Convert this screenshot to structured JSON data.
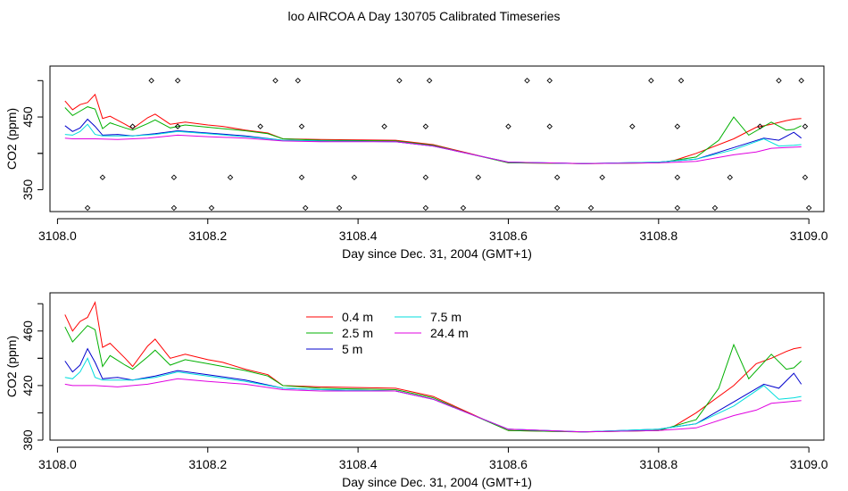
{
  "title": "loo AIRCOA A  Day 130705  Calibrated Timeseries",
  "chart_data": [
    {
      "type": "scatter",
      "title": "",
      "xlabel": "Day since Dec. 31, 2004 (GMT+1)",
      "ylabel": "CO2 (ppm)",
      "xlim": [
        3107.99,
        3109.02
      ],
      "ylim": [
        320,
        520
      ],
      "x_ticks": [
        "3108.0",
        "3108.2",
        "3108.4",
        "3108.6",
        "3108.8",
        "3109.0"
      ],
      "y_ticks": [
        "350",
        "450"
      ],
      "point_series": {
        "name": "",
        "x": [
          3108.125,
          3108.16,
          3108.29,
          3108.32,
          3108.455,
          3108.495,
          3108.625,
          3108.655,
          3108.79,
          3108.83,
          3108.96,
          3108.99,
          3108.1,
          3108.16,
          3108.27,
          3108.325,
          3108.435,
          3108.49,
          3108.6,
          3108.655,
          3108.765,
          3108.825,
          3108.935,
          3108.995,
          3108.06,
          3108.155,
          3108.23,
          3108.325,
          3108.395,
          3108.49,
          3108.56,
          3108.665,
          3108.725,
          3108.825,
          3108.895,
          3108.995,
          3108.04,
          3108.155,
          3108.205,
          3108.33,
          3108.375,
          3108.49,
          3108.54,
          3108.665,
          3108.71,
          3108.825,
          3108.875,
          3109.0
        ],
        "y": [
          500,
          500,
          500,
          500,
          500,
          500,
          500,
          500,
          500,
          500,
          500,
          500,
          437,
          437,
          437,
          437,
          437,
          437,
          437,
          437,
          437,
          437,
          437,
          437,
          367,
          367,
          367,
          367,
          367,
          367,
          367,
          367,
          367,
          367,
          367,
          367,
          325,
          325,
          325,
          325,
          325,
          325,
          325,
          325,
          325,
          325,
          325,
          325
        ]
      },
      "series": [
        {
          "name": "0.4 m",
          "color": "#ff0000",
          "x": [
            3108.01,
            3108.02,
            3108.03,
            3108.04,
            3108.05,
            3108.06,
            3108.07,
            3108.09,
            3108.1,
            3108.12,
            3108.13,
            3108.15,
            3108.17,
            3108.2,
            3108.22,
            3108.25,
            3108.28,
            3108.3,
            3108.35,
            3108.45,
            3108.5,
            3108.6,
            3108.7,
            3108.8,
            3108.82,
            3108.85,
            3108.9,
            3108.93,
            3108.95,
            3108.97,
            3108.98,
            3108.99
          ],
          "y": [
            472,
            460,
            467,
            470,
            481,
            448,
            451,
            440,
            434,
            449,
            454,
            440,
            443,
            439,
            437,
            432,
            428,
            420,
            419,
            418,
            412,
            387,
            386,
            387,
            390,
            400,
            420,
            436,
            440,
            445,
            447,
            448
          ]
        },
        {
          "name": "2.5 m",
          "color": "#00b000",
          "x": [
            3108.01,
            3108.02,
            3108.03,
            3108.04,
            3108.05,
            3108.06,
            3108.07,
            3108.09,
            3108.1,
            3108.12,
            3108.13,
            3108.15,
            3108.17,
            3108.2,
            3108.22,
            3108.25,
            3108.28,
            3108.3,
            3108.35,
            3108.45,
            3108.5,
            3108.6,
            3108.7,
            3108.8,
            3108.85,
            3108.88,
            3108.9,
            3108.92,
            3108.95,
            3108.97,
            3108.98,
            3108.99
          ],
          "y": [
            463,
            452,
            458,
            464,
            461,
            434,
            442,
            435,
            432,
            441,
            446,
            435,
            439,
            436,
            434,
            431,
            427,
            420,
            418,
            417,
            411,
            387,
            386,
            387,
            395,
            418,
            450,
            425,
            443,
            432,
            433,
            438
          ]
        },
        {
          "name": "5 m",
          "color": "#0000cc",
          "x": [
            3108.01,
            3108.02,
            3108.03,
            3108.04,
            3108.05,
            3108.06,
            3108.08,
            3108.1,
            3108.13,
            3108.16,
            3108.2,
            3108.25,
            3108.3,
            3108.35,
            3108.45,
            3108.5,
            3108.6,
            3108.7,
            3108.8,
            3108.85,
            3108.9,
            3108.94,
            3108.96,
            3108.98,
            3108.99
          ],
          "y": [
            438,
            430,
            435,
            447,
            437,
            425,
            426,
            424,
            427,
            431,
            428,
            424,
            418,
            417,
            416,
            410,
            388,
            386,
            388,
            392,
            408,
            421,
            418,
            429,
            421
          ]
        },
        {
          "name": "7.5 m",
          "color": "#00dddd",
          "x": [
            3108.01,
            3108.02,
            3108.03,
            3108.04,
            3108.05,
            3108.06,
            3108.08,
            3108.1,
            3108.13,
            3108.16,
            3108.2,
            3108.25,
            3108.3,
            3108.35,
            3108.45,
            3108.5,
            3108.6,
            3108.7,
            3108.8,
            3108.85,
            3108.9,
            3108.94,
            3108.96,
            3108.98,
            3108.99
          ],
          "y": [
            426,
            425,
            430,
            440,
            426,
            424,
            424,
            424,
            426,
            430,
            427,
            423,
            418,
            417,
            416,
            410,
            388,
            386,
            388,
            392,
            405,
            420,
            410,
            411,
            412
          ]
        },
        {
          "name": "24.4 m",
          "color": "#e000e0",
          "x": [
            3108.01,
            3108.02,
            3108.05,
            3108.08,
            3108.12,
            3108.16,
            3108.2,
            3108.25,
            3108.3,
            3108.35,
            3108.45,
            3108.5,
            3108.6,
            3108.7,
            3108.8,
            3108.85,
            3108.9,
            3108.93,
            3108.95,
            3108.97,
            3108.99
          ],
          "y": [
            421,
            420,
            420,
            419,
            421,
            425,
            423,
            421,
            417,
            416,
            416,
            410,
            388,
            386,
            387,
            389,
            398,
            402,
            407,
            408,
            409
          ]
        }
      ]
    },
    {
      "type": "line",
      "title": "",
      "xlabel": "Day since Dec. 31, 2004 (GMT+1)",
      "ylabel": "CO2 (ppm)",
      "xlim": [
        3107.99,
        3109.02
      ],
      "ylim": [
        380,
        488
      ],
      "x_ticks": [
        "3108.0",
        "3108.2",
        "3108.4",
        "3108.6",
        "3108.8",
        "3109.0"
      ],
      "y_ticks": [
        "380",
        "420",
        "460"
      ],
      "legend_position": "top-center",
      "series": [
        {
          "name": "0.4 m",
          "color": "#ff0000",
          "x": [
            3108.01,
            3108.02,
            3108.03,
            3108.04,
            3108.05,
            3108.06,
            3108.07,
            3108.09,
            3108.1,
            3108.12,
            3108.13,
            3108.15,
            3108.17,
            3108.2,
            3108.22,
            3108.25,
            3108.28,
            3108.3,
            3108.35,
            3108.45,
            3108.5,
            3108.6,
            3108.7,
            3108.8,
            3108.82,
            3108.85,
            3108.9,
            3108.93,
            3108.95,
            3108.97,
            3108.98,
            3108.99
          ],
          "y": [
            472,
            460,
            467,
            470,
            481,
            448,
            451,
            440,
            434,
            449,
            454,
            440,
            443,
            439,
            437,
            432,
            428,
            420,
            419,
            418,
            412,
            387,
            386,
            387,
            390,
            400,
            420,
            436,
            440,
            445,
            447,
            448
          ]
        },
        {
          "name": "2.5 m",
          "color": "#00b000",
          "x": [
            3108.01,
            3108.02,
            3108.03,
            3108.04,
            3108.05,
            3108.06,
            3108.07,
            3108.09,
            3108.1,
            3108.12,
            3108.13,
            3108.15,
            3108.17,
            3108.2,
            3108.22,
            3108.25,
            3108.28,
            3108.3,
            3108.35,
            3108.45,
            3108.5,
            3108.6,
            3108.7,
            3108.8,
            3108.85,
            3108.88,
            3108.9,
            3108.92,
            3108.95,
            3108.97,
            3108.98,
            3108.99
          ],
          "y": [
            463,
            452,
            458,
            464,
            461,
            434,
            442,
            435,
            432,
            441,
            446,
            435,
            439,
            436,
            434,
            431,
            427,
            420,
            418,
            417,
            411,
            387,
            386,
            387,
            395,
            418,
            450,
            425,
            443,
            432,
            433,
            438
          ]
        },
        {
          "name": "5 m",
          "color": "#0000cc",
          "x": [
            3108.01,
            3108.02,
            3108.03,
            3108.04,
            3108.05,
            3108.06,
            3108.08,
            3108.1,
            3108.13,
            3108.16,
            3108.2,
            3108.25,
            3108.3,
            3108.35,
            3108.45,
            3108.5,
            3108.6,
            3108.7,
            3108.8,
            3108.85,
            3108.9,
            3108.94,
            3108.96,
            3108.98,
            3108.99
          ],
          "y": [
            438,
            430,
            435,
            447,
            437,
            425,
            426,
            424,
            427,
            431,
            428,
            424,
            418,
            417,
            416,
            410,
            388,
            386,
            388,
            392,
            408,
            421,
            418,
            429,
            421
          ]
        },
        {
          "name": "7.5 m",
          "color": "#00dddd",
          "x": [
            3108.01,
            3108.02,
            3108.03,
            3108.04,
            3108.05,
            3108.06,
            3108.08,
            3108.1,
            3108.13,
            3108.16,
            3108.2,
            3108.25,
            3108.3,
            3108.35,
            3108.45,
            3108.5,
            3108.6,
            3108.7,
            3108.8,
            3108.85,
            3108.9,
            3108.94,
            3108.96,
            3108.98,
            3108.99
          ],
          "y": [
            426,
            425,
            430,
            440,
            426,
            424,
            424,
            424,
            426,
            430,
            427,
            423,
            418,
            417,
            416,
            410,
            388,
            386,
            388,
            392,
            405,
            420,
            410,
            411,
            412
          ]
        },
        {
          "name": "24.4 m",
          "color": "#e000e0",
          "x": [
            3108.01,
            3108.02,
            3108.05,
            3108.08,
            3108.12,
            3108.16,
            3108.2,
            3108.25,
            3108.3,
            3108.35,
            3108.45,
            3108.5,
            3108.6,
            3108.7,
            3108.8,
            3108.85,
            3108.9,
            3108.93,
            3108.95,
            3108.97,
            3108.99
          ],
          "y": [
            421,
            420,
            420,
            419,
            421,
            425,
            423,
            421,
            417,
            416,
            416,
            410,
            388,
            386,
            387,
            389,
            398,
            402,
            407,
            408,
            409
          ]
        }
      ]
    }
  ]
}
